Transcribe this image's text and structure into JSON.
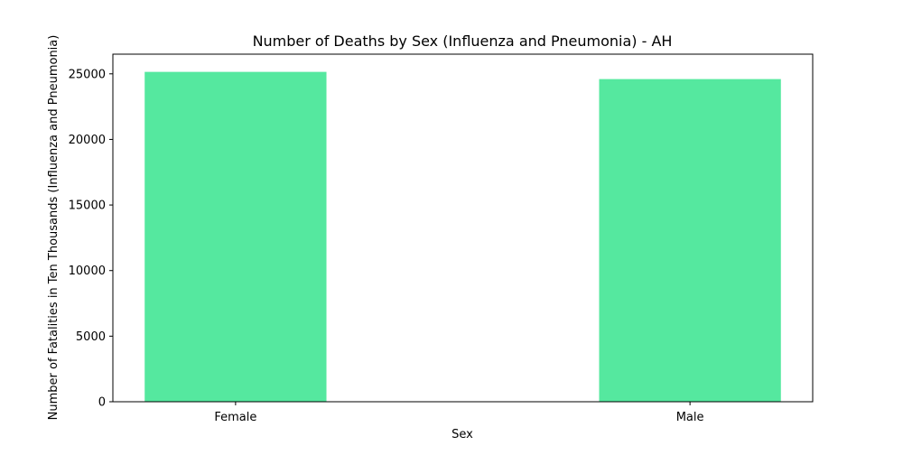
{
  "chart_data": {
    "type": "bar",
    "title": "Number of Deaths by Sex (Influenza and Pneumonia) - AH",
    "xlabel": "Sex",
    "ylabel": "Number of Fatalities in Ten Thousands (Influenza and Pneumonia)",
    "categories": [
      "Female",
      "Male"
    ],
    "values": [
      25150,
      24600
    ],
    "ylim": [
      0,
      26500
    ],
    "yticks": [
      0,
      5000,
      10000,
      15000,
      20000,
      25000
    ],
    "bar_color": "#55e89f",
    "grid": false,
    "legend": "none"
  }
}
